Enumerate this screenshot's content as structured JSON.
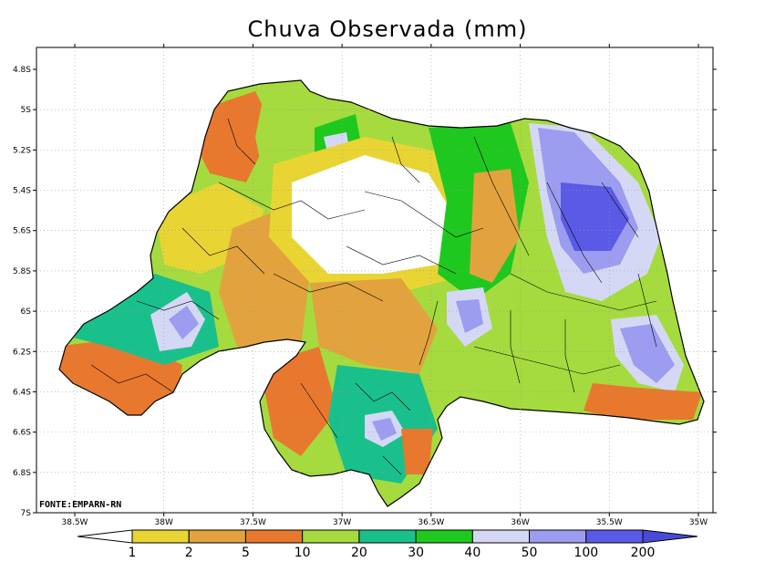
{
  "title": "Chuva Observada (mm)",
  "source_note": "FONTE:EMPARN-RN",
  "map": {
    "lat_ticks": [
      "4.8S",
      "5S",
      "5.2S",
      "5.4S",
      "5.6S",
      "5.8S",
      "6S",
      "6.2S",
      "6.4S",
      "6.6S",
      "6.8S",
      "7S"
    ],
    "lon_ticks": [
      "38.5W",
      "38W",
      "37.5W",
      "37W",
      "36.5W",
      "36W",
      "35.5W",
      "35W"
    ],
    "grid": true
  },
  "colorbar": {
    "labels": [
      "1",
      "2",
      "5",
      "10",
      "20",
      "30",
      "40",
      "50",
      "100",
      "200"
    ],
    "colors": [
      "#ffffff",
      "#e8d534",
      "#e2a33e",
      "#e8782e",
      "#a5db3e",
      "#19c08c",
      "#1fc81f",
      "#d5d8f4",
      "#9c9cf0",
      "#5a5ae6",
      "#4a4ad8"
    ]
  }
}
